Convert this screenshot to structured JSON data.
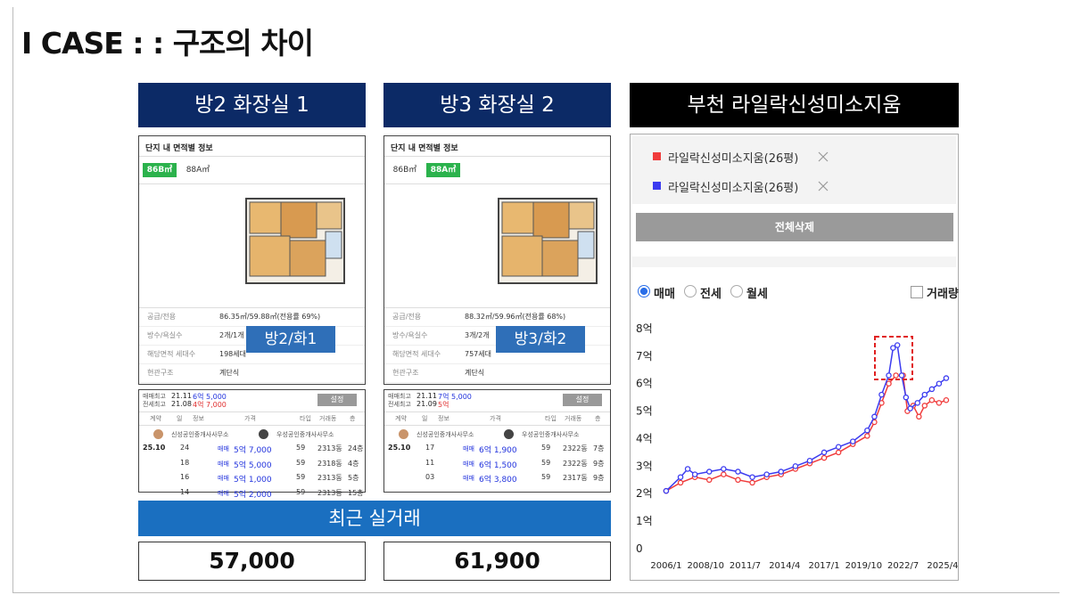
{
  "title": "I CASE : : 구조의 차이",
  "columns": [
    {
      "header": "방2 화장실 1",
      "listing": {
        "heading": "단지 내 면적별 정보",
        "tabs": [
          "86B㎡",
          "88A㎡"
        ],
        "active_tab": 0,
        "info": [
          [
            "공급/전용",
            "86.35㎡/59.88㎡(전용률 69%)"
          ],
          [
            "방수/욕실수",
            "2개/1개"
          ],
          [
            "해당면적 세대수",
            "198세대"
          ],
          [
            "현관구조",
            "계단식"
          ]
        ],
        "badge": "방2/화1"
      },
      "deals": {
        "max_sale": [
          "매매최고",
          "21.11",
          "6억 5,000"
        ],
        "max_lease": [
          "전세최고",
          "21.08",
          "4억 7,000"
        ],
        "button": "설정",
        "headers": [
          "계약",
          "일",
          "정보",
          "가격",
          "타입",
          "거래동",
          "층"
        ],
        "agents": [
          "신성공인중개사사무소",
          "우성공인중개사사무소"
        ],
        "month": "25.10",
        "rows": [
          [
            "24",
            "매매",
            "5억 7,000",
            "59",
            "2313동",
            "24층"
          ],
          [
            "18",
            "매매",
            "5억 5,000",
            "59",
            "2318동",
            "4층"
          ],
          [
            "16",
            "매매",
            "5억 1,000",
            "59",
            "2313동",
            "5층"
          ],
          [
            "14",
            "매매",
            "5억 2,000",
            "59",
            "2313동",
            "15층"
          ]
        ]
      },
      "recent": "57,000"
    },
    {
      "header": "방3 화장실 2",
      "listing": {
        "heading": "단지 내 면적별 정보",
        "tabs": [
          "86B㎡",
          "88A㎡"
        ],
        "active_tab": 1,
        "info": [
          [
            "공급/전용",
            "88.32㎡/59.96㎡(전용률 68%)"
          ],
          [
            "방수/욕실수",
            "3개/2개"
          ],
          [
            "해당면적 세대수",
            "757세대"
          ],
          [
            "현관구조",
            "계단식"
          ]
        ],
        "badge": "방3/화2"
      },
      "deals": {
        "max_sale": [
          "매매최고",
          "21.11",
          "7억 5,000"
        ],
        "max_lease": [
          "전세최고",
          "21.09",
          "5억"
        ],
        "button": "설정",
        "headers": [
          "계약",
          "일",
          "정보",
          "가격",
          "타입",
          "거래동",
          "층"
        ],
        "agents": [
          "신성공인중개사사무소",
          "우성공인중개사사무소"
        ],
        "month": "25.10",
        "rows": [
          [
            "17",
            "매매",
            "6억 1,900",
            "59",
            "2322동",
            "7층"
          ],
          [
            "11",
            "매매",
            "6억 1,500",
            "59",
            "2322동",
            "9층"
          ],
          [
            "03",
            "매매",
            "6억 3,800",
            "59",
            "2317동",
            "9층"
          ]
        ]
      },
      "recent": "61,900"
    }
  ],
  "recent_header": "최근 실거래",
  "chart_panel": {
    "header": "부천 라일락신성미소지움",
    "delete_button": "전체삭제",
    "radios": [
      "매매",
      "전세",
      "월세"
    ],
    "radio_selected": 0,
    "checkbox": "거래량"
  },
  "chart_data": {
    "type": "line",
    "series": [
      {
        "name": "라일락신성미소지움(26평)",
        "color": "#f03c3c",
        "x": [
          2006,
          2007,
          2008,
          2009,
          2010,
          2011,
          2012,
          2013,
          2014,
          2015,
          2016,
          2017,
          2018,
          2019,
          2020,
          2020.5,
          2021,
          2021.5,
          2022,
          2022.5,
          2022.8,
          2023.2,
          2023.6,
          2024,
          2024.5,
          2025,
          2025.5
        ],
        "values": [
          2.1,
          2.4,
          2.6,
          2.5,
          2.7,
          2.5,
          2.4,
          2.6,
          2.7,
          2.9,
          3.1,
          3.3,
          3.5,
          3.8,
          4.1,
          4.6,
          5.3,
          6.0,
          6.3,
          6.3,
          5.0,
          5.2,
          4.8,
          5.2,
          5.4,
          5.3,
          5.4
        ]
      },
      {
        "name": "라일락신성미소지움(26평)",
        "color": "#3c3cf0",
        "x": [
          2006,
          2007,
          2007.5,
          2008,
          2009,
          2010,
          2011,
          2012,
          2013,
          2014,
          2015,
          2016,
          2017,
          2018,
          2019,
          2020,
          2020.5,
          2021,
          2021.5,
          2021.8,
          2022.1,
          2022.4,
          2022.7,
          2023,
          2023.5,
          2024,
          2024.5,
          2025,
          2025.5
        ],
        "values": [
          2.1,
          2.6,
          2.9,
          2.7,
          2.8,
          2.9,
          2.8,
          2.6,
          2.7,
          2.8,
          3.0,
          3.2,
          3.5,
          3.7,
          3.9,
          4.3,
          4.8,
          5.6,
          6.3,
          7.3,
          7.4,
          6.3,
          5.5,
          5.1,
          5.3,
          5.6,
          5.8,
          6.0,
          6.2
        ]
      }
    ],
    "xlim": [
      2005.6,
      2026
    ],
    "xticks": [
      {
        "value": 2006.0,
        "label": "2006/1"
      },
      {
        "value": 2008.75,
        "label": "2008/10"
      },
      {
        "value": 2011.5,
        "label": "2011/7"
      },
      {
        "value": 2014.25,
        "label": "2014/4"
      },
      {
        "value": 2017.0,
        "label": "2017/1"
      },
      {
        "value": 2019.75,
        "label": "2019/10"
      },
      {
        "value": 2022.5,
        "label": "2022/7"
      },
      {
        "value": 2025.25,
        "label": "2025/4"
      }
    ],
    "ylim": [
      0,
      8.2
    ],
    "yticks": [
      0,
      {
        "value": 1,
        "label": "1억"
      },
      {
        "value": 2,
        "label": "2억"
      },
      {
        "value": 3,
        "label": "3억"
      },
      {
        "value": 4,
        "label": "4억"
      },
      {
        "value": 5,
        "label": "5억"
      },
      {
        "value": 6,
        "label": "6억"
      },
      {
        "value": 7,
        "label": "7억"
      },
      {
        "value": 8,
        "label": "8억"
      }
    ],
    "grid": false
  }
}
